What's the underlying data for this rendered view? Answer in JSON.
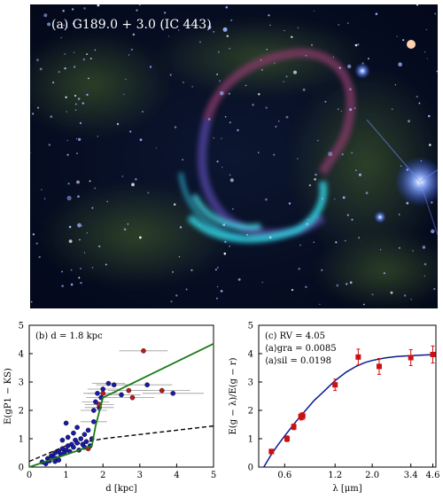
{
  "panel_a": {
    "label": "(a) G189.0 + 3.0 (IC 443)"
  },
  "chart_data": [
    {
      "panel": "b",
      "type": "scatter",
      "annotation": "(b) d = 1.8 kpc",
      "xlabel": "d [kpc]",
      "ylabel": "E(gP1 − KS)",
      "xlim": [
        0,
        5
      ],
      "ylim": [
        0,
        5
      ],
      "xticks": [
        "0",
        "1",
        "2",
        "3",
        "4",
        "5"
      ],
      "yticks": [
        "0",
        "1",
        "2",
        "3",
        "4",
        "5"
      ],
      "grid": false,
      "series": [
        {
          "color": "#1a1aa8",
          "marker": "circle",
          "points": [
            {
              "x": 0.35,
              "y": 0.18
            },
            {
              "x": 0.45,
              "y": 0.12
            },
            {
              "x": 0.5,
              "y": 0.3
            },
            {
              "x": 0.55,
              "y": 0.22
            },
            {
              "x": 0.6,
              "y": 0.4
            },
            {
              "x": 0.65,
              "y": 0.35
            },
            {
              "x": 0.7,
              "y": 0.5
            },
            {
              "x": 0.75,
              "y": 0.3
            },
            {
              "x": 0.8,
              "y": 0.55
            },
            {
              "x": 0.85,
              "y": 0.45
            },
            {
              "x": 0.9,
              "y": 0.65
            },
            {
              "x": 0.95,
              "y": 0.5
            },
            {
              "x": 1.0,
              "y": 0.6
            },
            {
              "x": 1.05,
              "y": 0.75
            },
            {
              "x": 1.1,
              "y": 0.55
            },
            {
              "x": 1.15,
              "y": 0.8
            },
            {
              "x": 1.2,
              "y": 0.7
            },
            {
              "x": 1.25,
              "y": 0.95
            },
            {
              "x": 1.3,
              "y": 0.85
            },
            {
              "x": 1.35,
              "y": 0.6
            },
            {
              "x": 1.4,
              "y": 1.0
            },
            {
              "x": 1.45,
              "y": 0.8
            },
            {
              "x": 1.5,
              "y": 1.15
            },
            {
              "x": 1.55,
              "y": 0.9
            },
            {
              "x": 1.6,
              "y": 1.3
            },
            {
              "x": 1.65,
              "y": 0.75
            },
            {
              "x": 1.7,
              "y": 1.0
            },
            {
              "x": 1.3,
              "y": 1.4
            },
            {
              "x": 1.2,
              "y": 1.2
            },
            {
              "x": 1.05,
              "y": 1.05
            },
            {
              "x": 1.0,
              "y": 1.55
            },
            {
              "x": 0.9,
              "y": 0.95
            },
            {
              "x": 1.75,
              "y": 2.0
            },
            {
              "x": 1.8,
              "y": 2.3
            },
            {
              "x": 1.85,
              "y": 2.6
            },
            {
              "x": 1.9,
              "y": 2.1
            },
            {
              "x": 1.95,
              "y": 2.45
            },
            {
              "x": 2.0,
              "y": 2.75
            },
            {
              "x": 2.15,
              "y": 2.95
            },
            {
              "x": 2.3,
              "y": 2.9
            },
            {
              "x": 2.5,
              "y": 2.55
            },
            {
              "x": 3.2,
              "y": 2.9
            },
            {
              "x": 3.9,
              "y": 2.6
            },
            {
              "x": 1.75,
              "y": 1.6
            },
            {
              "x": 0.7,
              "y": 0.2
            },
            {
              "x": 0.8,
              "y": 0.25
            },
            {
              "x": 1.5,
              "y": 0.7
            }
          ]
        },
        {
          "color": "#c01818",
          "marker": "circle",
          "points": [
            {
              "x": 3.1,
              "y": 4.1
            },
            {
              "x": 2.7,
              "y": 2.7
            },
            {
              "x": 3.6,
              "y": 2.7
            },
            {
              "x": 2.8,
              "y": 2.45
            },
            {
              "x": 1.9,
              "y": 2.2
            },
            {
              "x": 1.6,
              "y": 0.65
            },
            {
              "x": 2.0,
              "y": 2.6
            }
          ]
        }
      ],
      "model_line": {
        "color": "#1a7a1a",
        "x": [
          0,
          1.7,
          1.8,
          2.0,
          5
        ],
        "y": [
          0,
          0.75,
          1.45,
          2.45,
          4.35
        ]
      },
      "dashed_line": {
        "color": "#000000",
        "x": [
          0,
          1,
          2,
          3,
          4,
          5
        ],
        "y": [
          0.2,
          0.75,
          1.0,
          1.15,
          1.3,
          1.45
        ]
      }
    },
    {
      "panel": "c",
      "type": "scatter",
      "annotation_lines": [
        "(c) RV = 4.05",
        "⟨a⟩gra = 0.0085",
        "⟨a⟩sil = 0.0198"
      ],
      "xlabel": "λ [μm]",
      "ylabel": "E(g − λ)/E(g − r)",
      "ylim": [
        0,
        5
      ],
      "xscale": "log",
      "xlim": [
        0.42,
        4.8
      ],
      "xticks": [
        "0.6",
        "1.2",
        "2.0",
        "3.4",
        "4.6"
      ],
      "xtick_values": [
        0.6,
        1.2,
        2.0,
        3.4,
        4.6
      ],
      "yticks": [
        "0",
        "1",
        "2",
        "3",
        "4",
        "5"
      ],
      "grid": false,
      "series": [
        {
          "color": "#cc1111",
          "marker": "square",
          "points": [
            {
              "x": 0.5,
              "y": 0.55,
              "err": 0.08
            },
            {
              "x": 0.62,
              "y": 1.0,
              "err": 0.1
            },
            {
              "x": 0.68,
              "y": 1.42,
              "err": 0.1
            },
            {
              "x": 0.75,
              "y": 1.78,
              "err": 0.12
            },
            {
              "x": 0.77,
              "y": 1.8,
              "err": 0.12
            },
            {
              "x": 1.2,
              "y": 2.9,
              "err": 0.2
            },
            {
              "x": 1.65,
              "y": 3.88,
              "err": 0.28
            },
            {
              "x": 2.2,
              "y": 3.55,
              "err": 0.28
            },
            {
              "x": 3.4,
              "y": 3.86,
              "err": 0.28
            },
            {
              "x": 4.6,
              "y": 3.97,
              "err": 0.3
            }
          ]
        }
      ],
      "model_curve": {
        "color": "#0a1a8c",
        "x": [
          0.45,
          0.5,
          0.55,
          0.6,
          0.7,
          0.8,
          0.9,
          1.0,
          1.2,
          1.4,
          1.6,
          1.8,
          2.0,
          2.4,
          2.8,
          3.4,
          4.0,
          4.8
        ],
        "y": [
          0.0,
          0.45,
          0.8,
          1.1,
          1.6,
          2.0,
          2.35,
          2.6,
          3.05,
          3.35,
          3.55,
          3.68,
          3.76,
          3.85,
          3.9,
          3.93,
          3.95,
          3.97
        ]
      }
    }
  ]
}
